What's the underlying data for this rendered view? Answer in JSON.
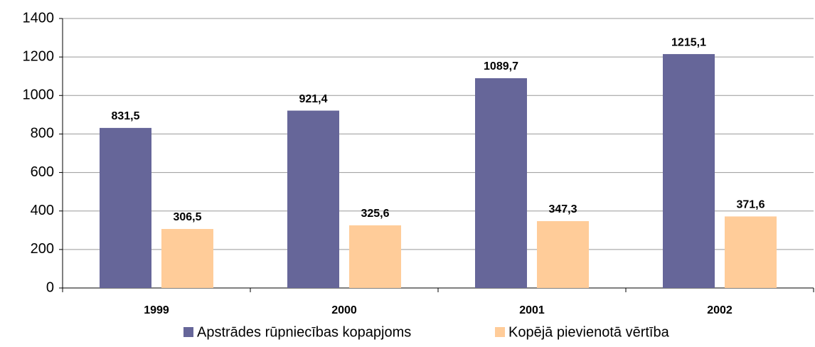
{
  "chart_data": {
    "type": "bar",
    "categories": [
      "1999",
      "2000",
      "2001",
      "2002"
    ],
    "series": [
      {
        "name": "Apstrādes rūpniecības kopapjoms",
        "color": "#666699",
        "values": [
          831.5,
          921.4,
          1089.7,
          1215.1
        ],
        "value_labels": [
          "831,5",
          "921,4",
          "1089,7",
          "1215,1"
        ]
      },
      {
        "name": "Kopējā pievienotā vērtība",
        "color": "#ffcc99",
        "values": [
          306.5,
          325.6,
          347.3,
          371.6
        ],
        "value_labels": [
          "306,5",
          "325,6",
          "347,3",
          "371,6"
        ]
      }
    ],
    "ylim": [
      0,
      1400
    ],
    "yticks": [
      0,
      200,
      400,
      600,
      800,
      1000,
      1200,
      1400
    ],
    "grid": true,
    "legend": "bottom"
  }
}
